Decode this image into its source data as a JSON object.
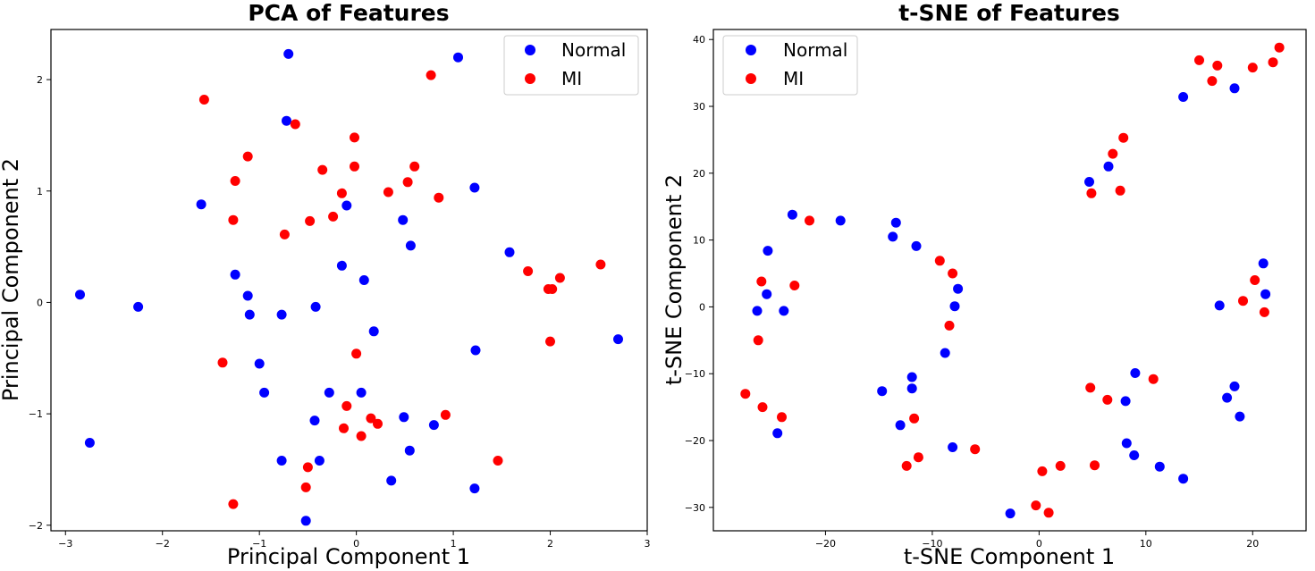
{
  "chart_data": [
    {
      "type": "scatter",
      "title": "PCA of Features",
      "xlabel": "Principal Component 1",
      "ylabel": "Principal Component 2",
      "xlim": [
        -3.15,
        3.0
      ],
      "ylim": [
        -2.05,
        2.45
      ],
      "xticks": [
        -3,
        -2,
        -1,
        0,
        1,
        2,
        3
      ],
      "yticks": [
        -2,
        -1,
        0,
        1,
        2
      ],
      "grid": false,
      "legend_position": "top-right",
      "series": [
        {
          "name": "Normal",
          "color": "#0000ff",
          "points": [
            [
              -0.7,
              2.23
            ],
            [
              1.05,
              2.2
            ],
            [
              -0.72,
              1.63
            ],
            [
              -1.6,
              0.88
            ],
            [
              -0.1,
              0.87
            ],
            [
              1.22,
              1.03
            ],
            [
              0.48,
              0.74
            ],
            [
              0.56,
              0.51
            ],
            [
              1.58,
              0.45
            ],
            [
              -1.25,
              0.25
            ],
            [
              -0.15,
              0.33
            ],
            [
              0.08,
              0.2
            ],
            [
              -2.85,
              0.07
            ],
            [
              -1.12,
              0.06
            ],
            [
              -2.25,
              -0.04
            ],
            [
              -0.42,
              -0.04
            ],
            [
              -1.1,
              -0.11
            ],
            [
              -0.77,
              -0.11
            ],
            [
              0.18,
              -0.26
            ],
            [
              2.7,
              -0.33
            ],
            [
              1.23,
              -0.43
            ],
            [
              -1.0,
              -0.55
            ],
            [
              -0.95,
              -0.81
            ],
            [
              -0.28,
              -0.81
            ],
            [
              0.05,
              -0.81
            ],
            [
              0.49,
              -1.03
            ],
            [
              -0.43,
              -1.06
            ],
            [
              0.8,
              -1.1
            ],
            [
              -2.75,
              -1.26
            ],
            [
              0.55,
              -1.33
            ],
            [
              -0.77,
              -1.42
            ],
            [
              -0.38,
              -1.42
            ],
            [
              0.36,
              -1.6
            ],
            [
              1.22,
              -1.67
            ],
            [
              -0.52,
              -1.96
            ]
          ]
        },
        {
          "name": "MI",
          "color": "#ff0000",
          "points": [
            [
              0.77,
              2.04
            ],
            [
              -1.57,
              1.82
            ],
            [
              -0.63,
              1.6
            ],
            [
              -0.02,
              1.48
            ],
            [
              -1.12,
              1.31
            ],
            [
              -0.02,
              1.22
            ],
            [
              0.6,
              1.22
            ],
            [
              -0.35,
              1.19
            ],
            [
              -1.25,
              1.09
            ],
            [
              0.53,
              1.08
            ],
            [
              0.33,
              0.99
            ],
            [
              -0.15,
              0.98
            ],
            [
              0.85,
              0.94
            ],
            [
              -0.24,
              0.77
            ],
            [
              -1.27,
              0.74
            ],
            [
              -0.48,
              0.73
            ],
            [
              -0.74,
              0.61
            ],
            [
              2.52,
              0.34
            ],
            [
              1.77,
              0.28
            ],
            [
              2.1,
              0.22
            ],
            [
              1.98,
              0.12
            ],
            [
              2.02,
              0.12
            ],
            [
              0.0,
              -0.46
            ],
            [
              -1.38,
              -0.54
            ],
            [
              2.0,
              -0.35
            ],
            [
              -0.1,
              -0.93
            ],
            [
              0.92,
              -1.01
            ],
            [
              0.15,
              -1.04
            ],
            [
              0.22,
              -1.09
            ],
            [
              -0.13,
              -1.13
            ],
            [
              0.05,
              -1.2
            ],
            [
              1.46,
              -1.42
            ],
            [
              -0.5,
              -1.48
            ],
            [
              -0.52,
              -1.66
            ],
            [
              -1.27,
              -1.81
            ]
          ]
        }
      ]
    },
    {
      "type": "scatter",
      "title": "t-SNE of Features",
      "xlabel": "t-SNE Component 1",
      "ylabel": "t-SNE Component 2",
      "xlim": [
        -30.5,
        25.0
      ],
      "ylim": [
        -33.5,
        41.5
      ],
      "xticks": [
        -20,
        -10,
        0,
        10,
        20
      ],
      "yticks": [
        -30,
        -20,
        -10,
        0,
        10,
        20,
        30,
        40
      ],
      "grid": false,
      "legend_position": "top-left",
      "series": [
        {
          "name": "Normal",
          "color": "#0000ff",
          "points": [
            [
              18.3,
              32.7
            ],
            [
              13.5,
              31.4
            ],
            [
              6.5,
              21.0
            ],
            [
              4.7,
              18.7
            ],
            [
              -23.1,
              13.8
            ],
            [
              -18.6,
              12.9
            ],
            [
              -13.4,
              12.6
            ],
            [
              -13.7,
              10.5
            ],
            [
              -11.5,
              9.1
            ],
            [
              -25.4,
              8.4
            ],
            [
              21.0,
              6.5
            ],
            [
              -7.6,
              2.7
            ],
            [
              -25.5,
              1.9
            ],
            [
              21.2,
              1.9
            ],
            [
              16.9,
              0.2
            ],
            [
              -7.9,
              0.1
            ],
            [
              -26.4,
              -0.6
            ],
            [
              -23.9,
              -0.6
            ],
            [
              -8.8,
              -6.9
            ],
            [
              9.0,
              -9.9
            ],
            [
              -11.9,
              -10.5
            ],
            [
              -14.7,
              -12.6
            ],
            [
              -11.9,
              -12.2
            ],
            [
              18.3,
              -11.9
            ],
            [
              8.1,
              -14.1
            ],
            [
              17.6,
              -13.6
            ],
            [
              18.8,
              -16.4
            ],
            [
              -13.0,
              -17.7
            ],
            [
              -24.5,
              -18.9
            ],
            [
              8.2,
              -20.4
            ],
            [
              -8.1,
              -21.0
            ],
            [
              8.9,
              -22.2
            ],
            [
              11.3,
              -23.9
            ],
            [
              13.5,
              -25.7
            ],
            [
              -2.7,
              -30.9
            ]
          ]
        },
        {
          "name": "MI",
          "color": "#ff0000",
          "points": [
            [
              22.5,
              38.8
            ],
            [
              15.0,
              36.9
            ],
            [
              16.7,
              36.1
            ],
            [
              20.0,
              35.8
            ],
            [
              21.9,
              36.6
            ],
            [
              16.2,
              33.8
            ],
            [
              7.9,
              25.3
            ],
            [
              6.9,
              22.9
            ],
            [
              7.6,
              17.4
            ],
            [
              4.9,
              17.0
            ],
            [
              -21.5,
              12.9
            ],
            [
              -9.3,
              6.9
            ],
            [
              -8.1,
              5.0
            ],
            [
              20.2,
              4.0
            ],
            [
              -26.0,
              3.8
            ],
            [
              -22.9,
              3.2
            ],
            [
              19.1,
              0.9
            ],
            [
              21.1,
              -0.8
            ],
            [
              -8.4,
              -2.8
            ],
            [
              -26.3,
              -5.0
            ],
            [
              10.7,
              -10.8
            ],
            [
              4.8,
              -12.1
            ],
            [
              -27.5,
              -13.0
            ],
            [
              6.4,
              -13.9
            ],
            [
              -25.9,
              -15.0
            ],
            [
              -24.1,
              -16.5
            ],
            [
              -11.7,
              -16.7
            ],
            [
              -6.0,
              -21.3
            ],
            [
              -11.3,
              -22.5
            ],
            [
              -12.4,
              -23.8
            ],
            [
              2.0,
              -23.8
            ],
            [
              5.2,
              -23.7
            ],
            [
              0.3,
              -24.6
            ],
            [
              -0.3,
              -29.7
            ],
            [
              0.9,
              -30.8
            ]
          ]
        }
      ]
    }
  ]
}
